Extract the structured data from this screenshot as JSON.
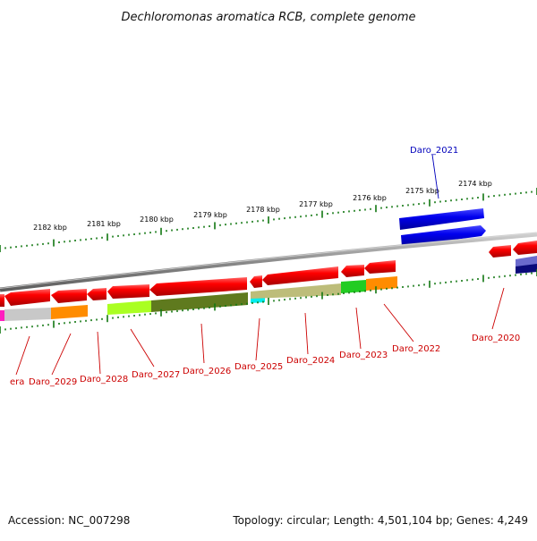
{
  "title": "Dechloromonas aromatica RCB, complete genome",
  "footer": {
    "accession": "Accession: NC_007298",
    "summary": "Topology: circular; Length: 4,501,104 bp; Genes: 4,249"
  },
  "scale_labels": [
    "2182 kbp",
    "2181 kbp",
    "2180 kbp",
    "2179 kbp",
    "2178 kbp",
    "2177 kbp",
    "2176 kbp",
    "2175 kbp",
    "2174 kbp"
  ],
  "gene_labels": [
    {
      "id": "era",
      "text": "era",
      "color": "#cc0000"
    },
    {
      "id": "daro-2029",
      "text": "Daro_2029",
      "color": "#cc0000"
    },
    {
      "id": "daro-2028",
      "text": "Daro_2028",
      "color": "#cc0000"
    },
    {
      "id": "daro-2027",
      "text": "Daro_2027",
      "color": "#cc0000"
    },
    {
      "id": "daro-2026",
      "text": "Daro_2026",
      "color": "#cc0000"
    },
    {
      "id": "daro-2025",
      "text": "Daro_2025",
      "color": "#cc0000"
    },
    {
      "id": "daro-2024",
      "text": "Daro_2024",
      "color": "#cc0000"
    },
    {
      "id": "daro-2023",
      "text": "Daro_2023",
      "color": "#cc0000"
    },
    {
      "id": "daro-2022",
      "text": "Daro_2022",
      "color": "#cc0000"
    },
    {
      "id": "daro-2020",
      "text": "Daro_2020",
      "color": "#cc0000"
    },
    {
      "id": "daro-2021",
      "text": "Daro_2021",
      "color": "#0000bb"
    }
  ],
  "colors": {
    "backbone": "#888888",
    "gene_red": "#ee0000",
    "gene_blue": "#0000ee",
    "scale_ticks": "#117711"
  }
}
